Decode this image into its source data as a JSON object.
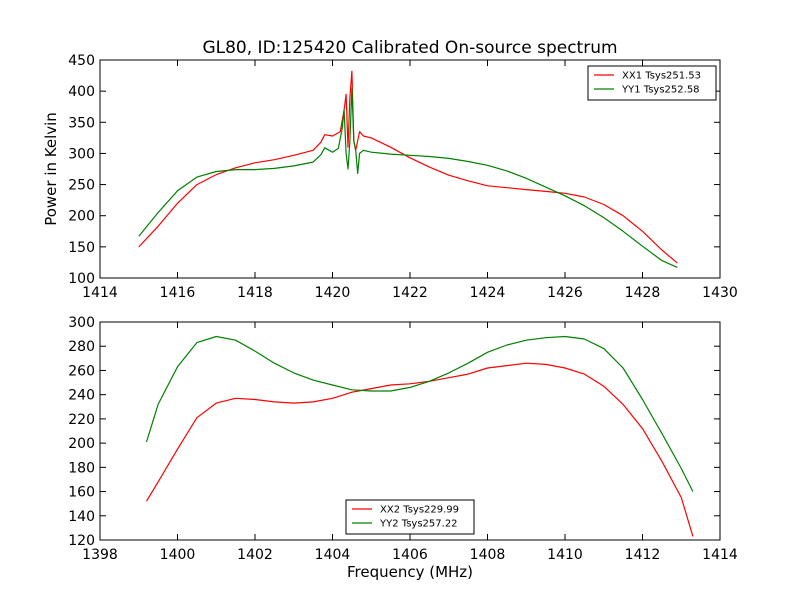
{
  "figure": {
    "title": "GL80, ID:125420 Calibrated On-source spectrum",
    "ylabel": "Power in Kelvin",
    "xlabel": "Frequency (MHz)"
  },
  "chart_data": [
    {
      "type": "line",
      "title": "GL80, ID:125420 Calibrated On-source spectrum",
      "xlabel": "",
      "ylabel": "Power in Kelvin",
      "xlim": [
        1414,
        1430
      ],
      "ylim": [
        100,
        450
      ],
      "xticks": [
        1414,
        1416,
        1418,
        1420,
        1422,
        1424,
        1426,
        1428,
        1430
      ],
      "yticks": [
        100,
        150,
        200,
        250,
        300,
        350,
        400,
        450
      ],
      "legend_position": "top-right",
      "grid": false,
      "series": [
        {
          "name": "XX1 Tsys251.53",
          "color": "#ff0000",
          "x": [
            1415.0,
            1415.5,
            1416.0,
            1416.5,
            1417.0,
            1417.5,
            1418.0,
            1418.5,
            1419.0,
            1419.5,
            1419.7,
            1419.8,
            1420.0,
            1420.2,
            1420.3,
            1420.35,
            1420.4,
            1420.45,
            1420.5,
            1420.55,
            1420.6,
            1420.7,
            1420.8,
            1421.0,
            1421.5,
            1422.0,
            1422.5,
            1423.0,
            1423.5,
            1424.0,
            1424.5,
            1425.0,
            1425.5,
            1426.0,
            1426.5,
            1427.0,
            1427.5,
            1428.0,
            1428.5,
            1428.9
          ],
          "y": [
            150,
            183,
            220,
            250,
            266,
            277,
            285,
            290,
            297,
            305,
            318,
            330,
            328,
            335,
            370,
            395,
            310,
            390,
            432,
            320,
            305,
            335,
            328,
            325,
            310,
            293,
            278,
            265,
            256,
            248,
            245,
            242,
            239,
            236,
            230,
            218,
            200,
            175,
            145,
            124
          ]
        },
        {
          "name": "YY1 Tsys252.58",
          "color": "#008000",
          "x": [
            1415.0,
            1415.5,
            1416.0,
            1416.5,
            1417.0,
            1417.5,
            1418.0,
            1418.5,
            1419.0,
            1419.5,
            1419.7,
            1419.8,
            1420.0,
            1420.15,
            1420.25,
            1420.3,
            1420.35,
            1420.4,
            1420.45,
            1420.5,
            1420.55,
            1420.6,
            1420.65,
            1420.7,
            1420.8,
            1421.0,
            1421.5,
            1422.0,
            1422.5,
            1423.0,
            1423.5,
            1424.0,
            1424.5,
            1425.0,
            1425.5,
            1426.0,
            1426.5,
            1427.0,
            1427.5,
            1428.0,
            1428.5,
            1428.9
          ],
          "y": [
            167,
            205,
            240,
            262,
            271,
            274,
            274,
            276,
            280,
            286,
            298,
            309,
            302,
            308,
            340,
            370,
            300,
            275,
            320,
            405,
            320,
            305,
            268,
            300,
            305,
            302,
            299,
            297,
            295,
            292,
            287,
            281,
            272,
            260,
            246,
            232,
            216,
            197,
            175,
            151,
            128,
            117
          ]
        }
      ]
    },
    {
      "type": "line",
      "title": "",
      "xlabel": "Frequency (MHz)",
      "ylabel": "",
      "xlim": [
        1398,
        1414
      ],
      "ylim": [
        120,
        300
      ],
      "xticks": [
        1398,
        1400,
        1402,
        1404,
        1406,
        1408,
        1410,
        1412,
        1414
      ],
      "yticks": [
        120,
        140,
        160,
        180,
        200,
        220,
        240,
        260,
        280,
        300
      ],
      "legend_position": "bottom-center",
      "grid": false,
      "series": [
        {
          "name": "XX2 Tsys229.99",
          "color": "#ff0000",
          "x": [
            1399.2,
            1399.5,
            1400.0,
            1400.5,
            1401.0,
            1401.5,
            1402.0,
            1402.5,
            1403.0,
            1403.5,
            1404.0,
            1404.5,
            1405.0,
            1405.5,
            1406.0,
            1406.5,
            1407.0,
            1407.5,
            1408.0,
            1408.5,
            1409.0,
            1409.5,
            1410.0,
            1410.5,
            1411.0,
            1411.5,
            1412.0,
            1412.5,
            1413.0,
            1413.3
          ],
          "y": [
            152,
            168,
            195,
            221,
            233,
            237,
            236,
            234,
            233,
            234,
            237,
            242,
            245,
            248,
            249,
            251,
            254,
            257,
            262,
            264,
            266,
            265,
            262,
            257,
            247,
            232,
            212,
            185,
            155,
            123
          ]
        },
        {
          "name": "YY2 Tsys257.22",
          "color": "#008000",
          "x": [
            1399.2,
            1399.5,
            1400.0,
            1400.5,
            1401.0,
            1401.5,
            1402.0,
            1402.5,
            1403.0,
            1403.5,
            1404.0,
            1404.5,
            1405.0,
            1405.5,
            1406.0,
            1406.5,
            1407.0,
            1407.5,
            1408.0,
            1408.5,
            1409.0,
            1409.5,
            1410.0,
            1410.5,
            1411.0,
            1411.5,
            1412.0,
            1412.5,
            1413.0,
            1413.3
          ],
          "y": [
            201,
            232,
            263,
            283,
            288,
            285,
            276,
            266,
            258,
            252,
            248,
            244,
            243,
            243,
            246,
            251,
            258,
            266,
            275,
            281,
            285,
            287,
            288,
            286,
            278,
            262,
            236,
            208,
            179,
            160
          ]
        }
      ]
    }
  ]
}
